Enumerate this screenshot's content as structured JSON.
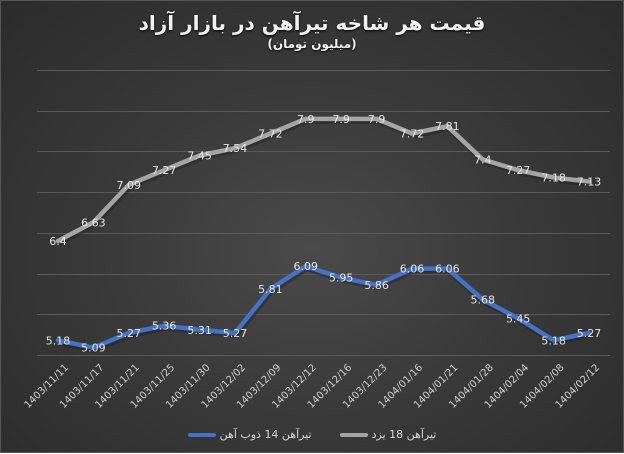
{
  "chart_data": {
    "type": "line",
    "title": "قیمت هر شاخه تیرآهن در بازار آزاد",
    "subtitle": "(میلیون تومان)",
    "xlabel": "",
    "ylabel": "",
    "ylim": [
      5.0,
      8.5
    ],
    "grid": true,
    "y_axis_visible": false,
    "legend_position": "bottom",
    "categories": [
      "1403/11/11",
      "1403/11/17",
      "1403/11/21",
      "1403/11/25",
      "1403/11/30",
      "1403/12/02",
      "1403/12/09",
      "1403/12/12",
      "1403/12/16",
      "1403/12/23",
      "1404/01/16",
      "1404/01/21",
      "1404/01/28",
      "1404/02/04",
      "1404/02/08",
      "1404/02/12"
    ],
    "series": [
      {
        "name": "تیرآهن 14 ذوب آهن",
        "color": "#4472c4",
        "values": [
          5.18,
          5.09,
          5.27,
          5.36,
          5.31,
          5.27,
          5.81,
          6.09,
          5.95,
          5.86,
          6.06,
          6.06,
          5.68,
          5.45,
          5.18,
          5.27
        ]
      },
      {
        "name": "تیرآهن 18 یزد",
        "color": "#a5a5a5",
        "values": [
          6.4,
          6.63,
          7.09,
          7.27,
          7.45,
          7.54,
          7.72,
          7.9,
          7.9,
          7.9,
          7.72,
          7.81,
          7.4,
          7.27,
          7.18,
          7.13
        ]
      }
    ]
  },
  "legend": {
    "items": [
      {
        "label": "تیرآهن 14 ذوب آهن",
        "color": "#4472c4"
      },
      {
        "label": "تیرآهن 18 یزد",
        "color": "#a5a5a5"
      }
    ]
  }
}
